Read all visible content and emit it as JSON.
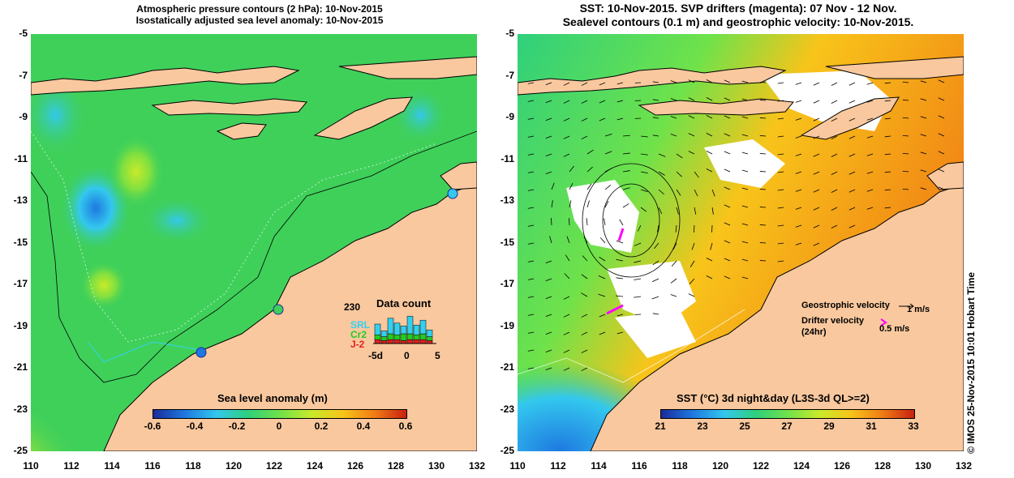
{
  "left_panel": {
    "title_line1": "Atmospheric pressure contours (2 hPa): 10-Nov-2015",
    "title_line2": "Isostatically adjusted sea level anomaly: 10-Nov-2015",
    "colorbar_title": "Sea level anomaly (m)",
    "colorbar_ticks": [
      "-0.6",
      "-0.4",
      "-0.2",
      "0",
      "0.2",
      "0.4",
      "0.6"
    ],
    "colorbar_colors": [
      "#1a2c9b",
      "#1e78e0",
      "#33c8ee",
      "#2fd07c",
      "#6fe24a",
      "#c8ea2a",
      "#f8c41a",
      "#f07c14",
      "#c82010"
    ],
    "data_count": {
      "title": "Data count",
      "max_label": "230",
      "legend": [
        {
          "label": "SRL",
          "color": "#33d0f0"
        },
        {
          "label": "Cr2",
          "color": "#22cc22"
        },
        {
          "label": "J-2",
          "color": "#e02020"
        }
      ],
      "axis_ticks": [
        "-5d",
        "0",
        "5"
      ],
      "bars": [
        {
          "srl": 0.55,
          "cr2": 0.25,
          "j2": 0.2
        },
        {
          "srl": 0.3,
          "cr2": 0.2,
          "j2": 0.15
        },
        {
          "srl": 0.8,
          "cr2": 0.3,
          "j2": 0.2
        },
        {
          "srl": 0.6,
          "cr2": 0.25,
          "j2": 0.2
        },
        {
          "srl": 0.4,
          "cr2": 0.35,
          "j2": 0.15
        },
        {
          "srl": 0.9,
          "cr2": 0.3,
          "j2": 0.2
        },
        {
          "srl": 0.5,
          "cr2": 0.25,
          "j2": 0.2
        },
        {
          "srl": 0.7,
          "cr2": 0.3,
          "j2": 0.2
        },
        {
          "srl": 0.35,
          "cr2": 0.2,
          "j2": 0.15
        }
      ]
    }
  },
  "right_panel": {
    "title_line1": "SST: 10-Nov-2015. SVP drifters (magenta): 07 Nov - 12 Nov.",
    "title_line2": "Sealevel contours (0.1 m) and geostrophic velocity: 10-Nov-2015.",
    "colorbar_title": "SST (°C) 3d night&day (L3S-3d QL>=2)",
    "colorbar_ticks": [
      "21",
      "23",
      "25",
      "27",
      "29",
      "31",
      "33"
    ],
    "colorbar_colors": [
      "#1a2c9b",
      "#1e78e0",
      "#33c8ee",
      "#2fd07c",
      "#6fe24a",
      "#c8ea2a",
      "#f8c41a",
      "#f07c14",
      "#c82010"
    ],
    "legend": {
      "geostrophic_label": "Geostrophic velocity",
      "geostrophic_value": "1 m/s",
      "drifter_label": "Drifter velocity",
      "drifter_sub": "(24hr)",
      "drifter_value": "0.5 m/s"
    }
  },
  "axes": {
    "latitudes": [
      "-5",
      "-7",
      "-9",
      "-11",
      "-13",
      "-15",
      "-17",
      "-19",
      "-21",
      "-23",
      "-25"
    ],
    "longitudes": [
      "110",
      "112",
      "114",
      "116",
      "118",
      "120",
      "122",
      "124",
      "126",
      "128",
      "130",
      "132"
    ]
  },
  "colors": {
    "land": "#f9c89e",
    "coast": "#000000",
    "sea_green": "#3fd05a",
    "sst_orange": "#f2a21a",
    "drifter": "#ff00ff"
  },
  "credit": "© IMOS 25-Nov-2015 10:01 Hobart Time"
}
